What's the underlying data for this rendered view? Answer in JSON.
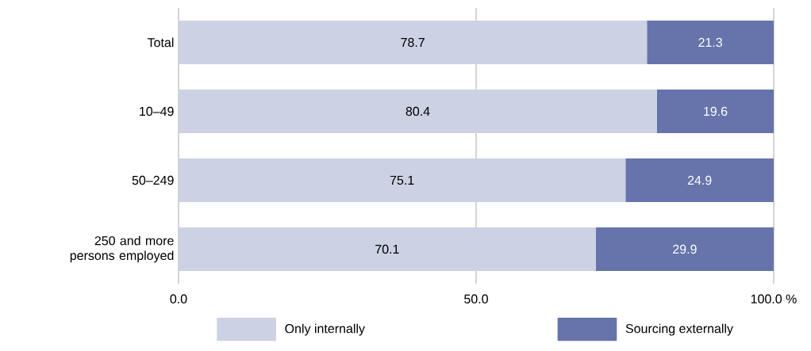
{
  "chart_data": {
    "type": "bar",
    "orientation": "horizontal",
    "stacked": true,
    "categories": [
      "Total",
      "10–49",
      "50–249",
      "250 and more persons employed"
    ],
    "series": [
      {
        "name": "Only internally",
        "color": "#cdd1e4",
        "values": [
          78.7,
          80.4,
          75.1,
          70.1
        ]
      },
      {
        "name": "Sourcing externally",
        "color": "#6674ab",
        "values": [
          21.3,
          19.6,
          24.9,
          29.9
        ]
      }
    ],
    "xlim": [
      0,
      100
    ],
    "xticks": [
      {
        "value": 0,
        "label": "0.0"
      },
      {
        "value": 50,
        "label": "50.0"
      },
      {
        "value": 100,
        "label": "100.0 %"
      }
    ],
    "grid": "x",
    "legend": "bottom",
    "data_labels": true
  }
}
